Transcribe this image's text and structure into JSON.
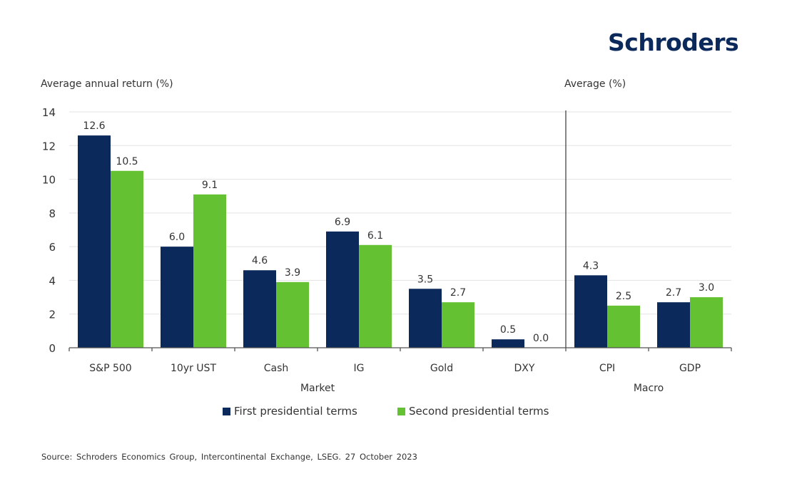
{
  "brand": {
    "logo_text": "Schroders",
    "color": "#0b2a5b"
  },
  "chart_data": {
    "type": "bar",
    "title": "",
    "ylabel": "Average annual return (%)",
    "ylabel_right": "Average (%)",
    "xlabel": "",
    "ylim": [
      0,
      14
    ],
    "yticks": [
      0,
      2,
      4,
      6,
      8,
      10,
      12,
      14
    ],
    "grid": true,
    "categories": [
      "S&P 500",
      "10yr UST",
      "Cash",
      "IG",
      "Gold",
      "DXY",
      "CPI",
      "GDP"
    ],
    "groups": [
      {
        "label": "Market",
        "categories": [
          "S&P 500",
          "10yr UST",
          "Cash",
          "IG",
          "Gold",
          "DXY"
        ]
      },
      {
        "label": "Macro",
        "categories": [
          "CPI",
          "GDP"
        ]
      }
    ],
    "series": [
      {
        "name": "First presidential terms",
        "color": "#0b2a5b",
        "values": [
          12.6,
          6.0,
          4.6,
          6.9,
          3.5,
          0.5,
          4.3,
          2.7
        ]
      },
      {
        "name": "Second presidential terms",
        "color": "#63c132",
        "values": [
          10.5,
          9.1,
          3.9,
          6.1,
          2.7,
          0.0,
          2.5,
          3.0
        ]
      }
    ],
    "legend_position": "bottom"
  },
  "source": "Source: Schroders Economics Group, Intercontinental Exchange, LSEG. 27 October 2023"
}
